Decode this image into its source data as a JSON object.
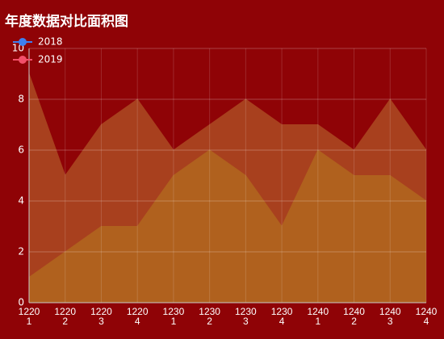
{
  "chart_data": {
    "type": "area",
    "title": "年度数据对比面积图",
    "categories": [
      "12201",
      "12202",
      "12203",
      "12204",
      "12301",
      "12302",
      "12303",
      "12304",
      "12401",
      "12402",
      "12403",
      "12404"
    ],
    "series": [
      {
        "name": "2018",
        "color": "#3d7ff0",
        "area_color": "#a8401e",
        "values": [
          9,
          5,
          7,
          8,
          6,
          7,
          8,
          7,
          7,
          6,
          8,
          6
        ]
      },
      {
        "name": "2019",
        "color": "#f2506a",
        "area_color": "#b0611e",
        "values": [
          1,
          2,
          3,
          3,
          5,
          6,
          5,
          3,
          6,
          5,
          5,
          4
        ]
      }
    ],
    "ylim": [
      0,
      10
    ],
    "yticks": [
      0,
      2,
      4,
      6,
      8,
      10
    ],
    "grid": true
  }
}
